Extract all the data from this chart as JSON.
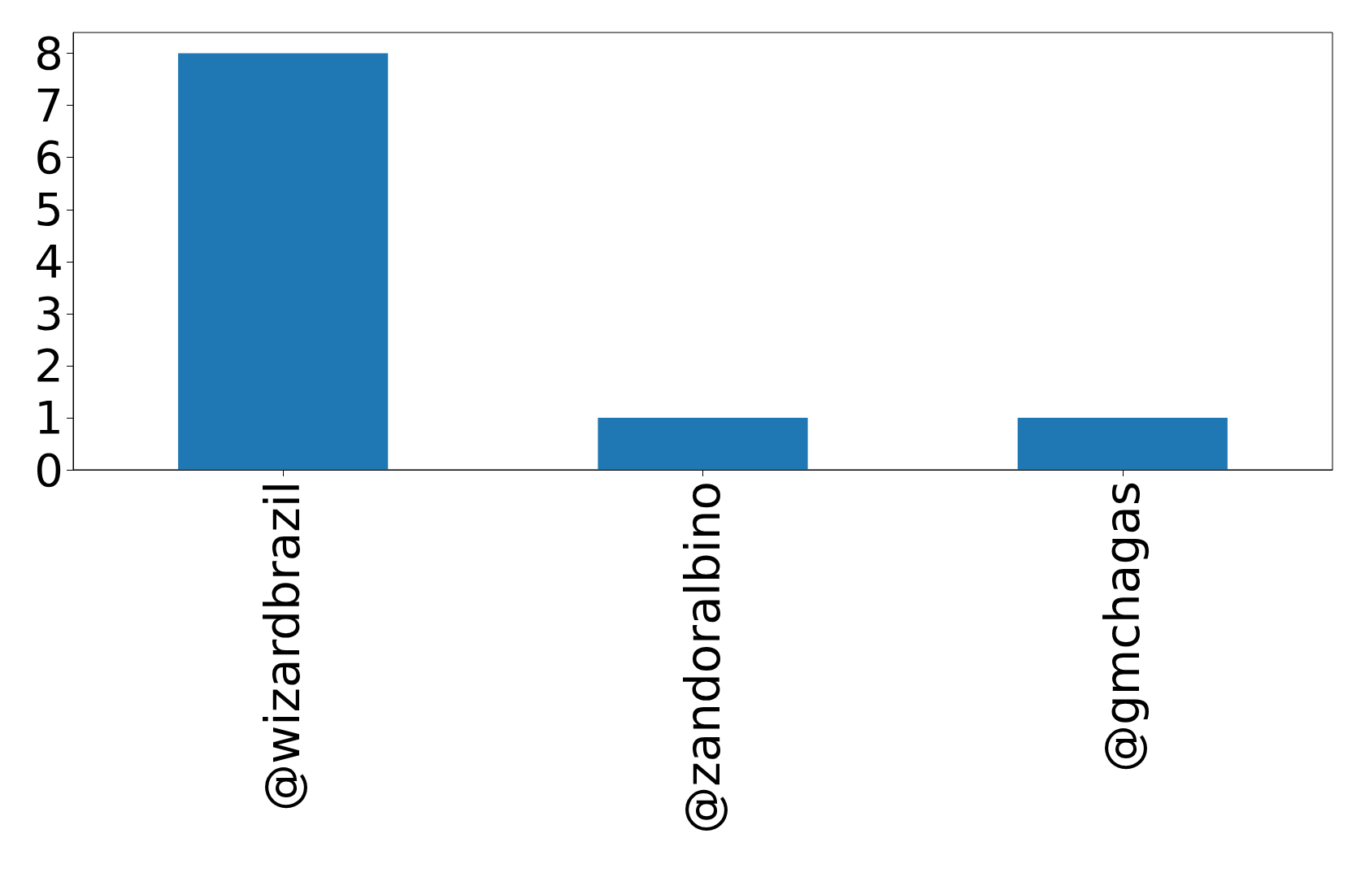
{
  "chart_data": {
    "type": "bar",
    "categories": [
      "@wizardbrazil",
      "@zandoralbino",
      "@gmchagas"
    ],
    "values": [
      8,
      1,
      1
    ],
    "color": "#1f77b4",
    "ylim": [
      0,
      8.4
    ],
    "yticks": [
      0,
      1,
      2,
      3,
      4,
      5,
      6,
      7,
      8
    ],
    "grid": false
  }
}
